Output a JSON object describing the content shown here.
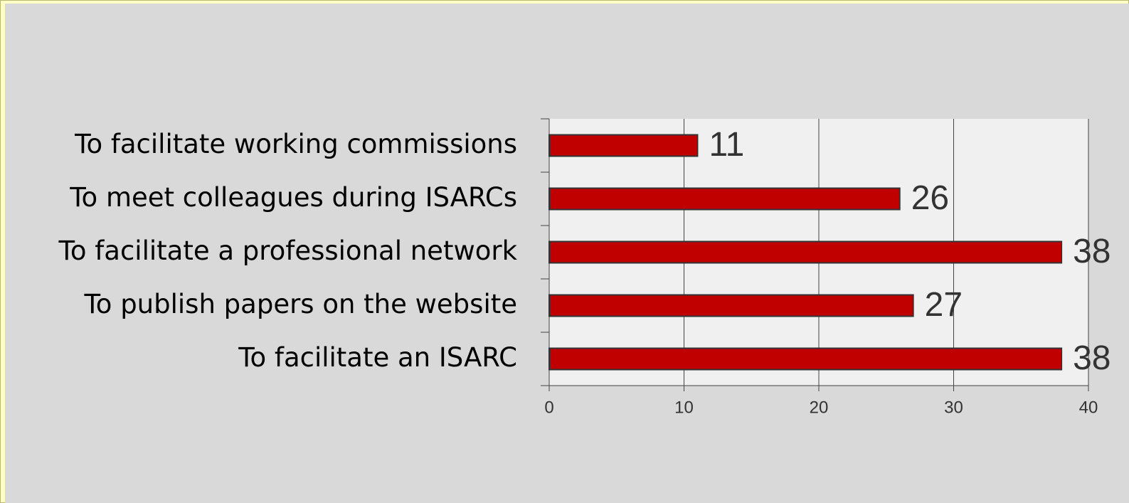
{
  "chart_data": {
    "type": "bar",
    "orientation": "horizontal",
    "categories": [
      "To facilitate working commissions",
      "To meet colleagues during ISARCs",
      "To facilitate a professional network",
      "To publish papers on the website",
      "To facilitate an ISARC"
    ],
    "values": [
      11,
      26,
      38,
      27,
      38
    ],
    "color": "#c00000",
    "xlim": [
      0,
      40
    ],
    "xticks": [
      0,
      10,
      20,
      30,
      40
    ],
    "grid": true
  }
}
